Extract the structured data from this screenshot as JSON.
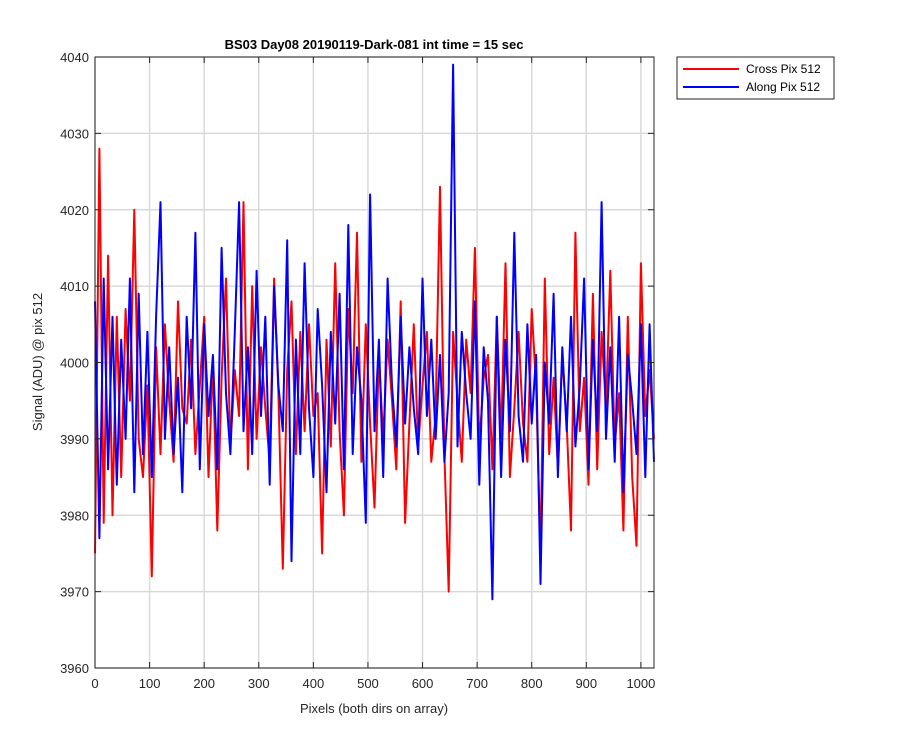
{
  "chart_data": {
    "type": "line",
    "title": "BS03 Day08 20190119-Dark-081 int time = 15 sec",
    "xlabel": "Pixels (both dirs on array)",
    "ylabel": "Signal (ADU) @ pix 512",
    "xlim": [
      0,
      1024
    ],
    "ylim": [
      3960,
      4040
    ],
    "xticks": [
      0,
      100,
      200,
      300,
      400,
      500,
      600,
      700,
      800,
      900,
      1000
    ],
    "yticks": [
      3960,
      3970,
      3980,
      3990,
      4000,
      4010,
      4020,
      4030,
      4040
    ],
    "grid": true,
    "legend_position": "outside-top-right",
    "series": [
      {
        "name": "Cross Pix 512",
        "color": "#ff0000",
        "x": [
          0,
          8,
          16,
          24,
          32,
          40,
          48,
          56,
          64,
          72,
          80,
          88,
          96,
          104,
          112,
          120,
          128,
          136,
          144,
          152,
          160,
          168,
          176,
          184,
          192,
          200,
          208,
          216,
          224,
          232,
          240,
          248,
          256,
          264,
          272,
          280,
          288,
          296,
          304,
          312,
          320,
          328,
          336,
          344,
          352,
          360,
          368,
          376,
          384,
          392,
          400,
          408,
          416,
          424,
          432,
          440,
          448,
          456,
          464,
          472,
          480,
          488,
          496,
          504,
          512,
          520,
          528,
          536,
          544,
          552,
          560,
          568,
          576,
          584,
          592,
          600,
          608,
          616,
          624,
          632,
          640,
          648,
          656,
          664,
          672,
          680,
          688,
          696,
          704,
          712,
          720,
          728,
          736,
          744,
          752,
          760,
          768,
          776,
          784,
          792,
          800,
          808,
          816,
          824,
          832,
          840,
          848,
          856,
          864,
          872,
          880,
          888,
          896,
          904,
          912,
          920,
          928,
          936,
          944,
          952,
          960,
          968,
          976,
          984,
          992,
          1000,
          1008,
          1016,
          1024
        ],
        "y": [
          3975,
          4028,
          3979,
          4014,
          3980,
          4006,
          3985,
          4007,
          3995,
          4020,
          3990,
          3985,
          3997,
          3972,
          4002,
          3988,
          4005,
          3995,
          3987,
          4008,
          3994,
          3992,
          4003,
          3988,
          3997,
          4006,
          3985,
          4000,
          3978,
          3998,
          4011,
          3989,
          3999,
          3993,
          4021,
          3986,
          4010,
          3990,
          4002,
          3994,
          3987,
          4011,
          3996,
          3973,
          3999,
          4008,
          3988,
          4004,
          3991,
          4005,
          3993,
          3996,
          3975,
          4003,
          3989,
          4013,
          3991,
          3980,
          4007,
          3996,
          4017,
          3987,
          4005,
          3992,
          3981,
          4001,
          3990,
          4003,
          3995,
          3986,
          4008,
          3979,
          3992,
          4005,
          3989,
          3997,
          4004,
          3987,
          3993,
          4023,
          3988,
          3970,
          4004,
          3995,
          3987,
          4003,
          3996,
          4015,
          3989,
          3998,
          4001,
          3986,
          4006,
          3990,
          4013,
          3985,
          3994,
          4004,
          3992,
          3987,
          4007,
          3997,
          3975,
          4011,
          3988,
          3998,
          3986,
          4001,
          3992,
          3978,
          4017,
          3991,
          3998,
          3984,
          4009,
          3986,
          4004,
          3994,
          4012,
          3989,
          3996,
          3978,
          4006,
          3985,
          3976,
          4013,
          3993,
          3999,
          3990
        ],
        "note_peaks": {
          "max_label": "4028 near x=10",
          "min_label": "3970 near x=650"
        }
      },
      {
        "name": "Along Pix 512",
        "color": "#0000ff",
        "x": [
          0,
          8,
          16,
          24,
          32,
          40,
          48,
          56,
          64,
          72,
          80,
          88,
          96,
          104,
          112,
          120,
          128,
          136,
          144,
          152,
          160,
          168,
          176,
          184,
          192,
          200,
          208,
          216,
          224,
          232,
          240,
          248,
          256,
          264,
          272,
          280,
          288,
          296,
          304,
          312,
          320,
          328,
          336,
          344,
          352,
          360,
          368,
          376,
          384,
          392,
          400,
          408,
          416,
          424,
          432,
          440,
          448,
          456,
          464,
          472,
          480,
          488,
          496,
          504,
          512,
          520,
          528,
          536,
          544,
          552,
          560,
          568,
          576,
          584,
          592,
          600,
          608,
          616,
          624,
          632,
          640,
          648,
          656,
          664,
          672,
          680,
          688,
          696,
          704,
          712,
          720,
          728,
          736,
          744,
          752,
          760,
          768,
          776,
          784,
          792,
          800,
          808,
          816,
          824,
          832,
          840,
          848,
          856,
          864,
          872,
          880,
          888,
          896,
          904,
          912,
          920,
          928,
          936,
          944,
          952,
          960,
          968,
          976,
          984,
          992,
          1000,
          1008,
          1016,
          1024
        ],
        "y": [
          4008,
          3977,
          4011,
          3986,
          4006,
          3984,
          4003,
          3990,
          4011,
          3983,
          4009,
          3988,
          4004,
          3985,
          4006,
          4021,
          3990,
          4002,
          3988,
          3998,
          3983,
          4006,
          3994,
          4017,
          3986,
          4005,
          3993,
          4001,
          3986,
          4015,
          3996,
          3988,
          4004,
          4021,
          3991,
          4002,
          3988,
          4012,
          3993,
          4006,
          3984,
          4010,
          3997,
          3991,
          4016,
          3974,
          4003,
          3988,
          4013,
          3994,
          3985,
          4007,
          3997,
          3983,
          4004,
          3992,
          4009,
          3986,
          4018,
          3988,
          4002,
          3995,
          3979,
          4022,
          3991,
          4003,
          3985,
          4011,
          3997,
          3989,
          4006,
          3992,
          4002,
          3994,
          3988,
          4011,
          3993,
          4003,
          3990,
          4001,
          3987,
          3996,
          4039,
          3989,
          4004,
          3996,
          3990,
          4008,
          3984,
          4002,
          3995,
          3969,
          4006,
          3985,
          4003,
          3991,
          4017,
          3993,
          3987,
          4005,
          3992,
          4001,
          3971,
          4000,
          3992,
          4009,
          3985,
          4002,
          3991,
          4006,
          3989,
          3997,
          4011,
          3986,
          4003,
          3991,
          4021,
          3990,
          4002,
          3987,
          4006,
          3983,
          4001,
          3995,
          3988,
          4005,
          3985,
          4005,
          3987
        ],
        "note_peaks": {
          "max_label": "4039 near x=655",
          "min_label": "3969 near x=725"
        }
      }
    ]
  }
}
